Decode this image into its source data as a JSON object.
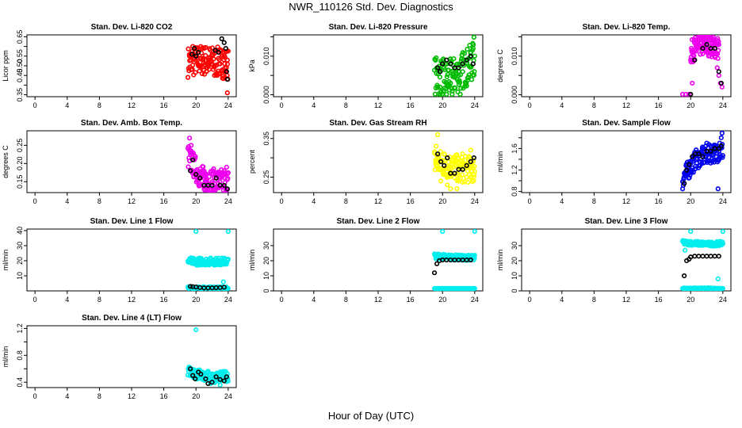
{
  "page": {
    "title": "NWR_110126  Std. Dev. Diagnostics",
    "xlabel": "Hour of Day (UTC)"
  },
  "chart_data": [
    {
      "type": "scatter",
      "title": "Stan. Dev. Li-820 CO2",
      "ylabel": "Licor ppm",
      "color": "#ff0000",
      "xlim": [
        -1,
        25
      ],
      "ylim": [
        0.34,
        0.66
      ],
      "xticks": [
        0,
        4,
        8,
        12,
        16,
        20,
        24
      ],
      "yticks": [
        0.35,
        0.4,
        0.45,
        0.5,
        0.55,
        0.6,
        0.65
      ],
      "ytick_labels": [
        "0.35",
        "",
        "0.45",
        "0.50",
        "0.55",
        "",
        "0.65"
      ],
      "band": {
        "x": [
          19,
          24
        ],
        "center": [
          0.52,
          0.53,
          0.52,
          0.51
        ],
        "spread": 0.08
      },
      "colored_points": [
        [
          19.2,
          0.55
        ],
        [
          19.4,
          0.48
        ],
        [
          19.6,
          0.6
        ],
        [
          20.0,
          0.57
        ],
        [
          20.3,
          0.5
        ],
        [
          20.6,
          0.54
        ],
        [
          21.0,
          0.59
        ],
        [
          21.3,
          0.47
        ],
        [
          21.7,
          0.52
        ],
        [
          22.0,
          0.56
        ],
        [
          22.3,
          0.45
        ],
        [
          22.6,
          0.58
        ],
        [
          23.0,
          0.51
        ],
        [
          23.3,
          0.55
        ],
        [
          23.6,
          0.49
        ],
        [
          23.9,
          0.53
        ],
        [
          23.6,
          0.44
        ],
        [
          23.9,
          0.36
        ]
      ],
      "black_points": [
        [
          19.5,
          0.56
        ],
        [
          19.8,
          0.59
        ],
        [
          20.0,
          0.55
        ],
        [
          20.3,
          0.57
        ],
        [
          22.4,
          0.58
        ],
        [
          22.8,
          0.57
        ],
        [
          23.2,
          0.64
        ],
        [
          23.5,
          0.62
        ],
        [
          23.7,
          0.59
        ],
        [
          23.8,
          0.47
        ],
        [
          23.9,
          0.43
        ]
      ]
    },
    {
      "type": "scatter",
      "title": "Stan. Dev. Li-820 Pressure",
      "ylabel": "kPa",
      "color": "#00bb00",
      "xlim": [
        -1,
        25
      ],
      "ylim": [
        -0.0005,
        0.0155
      ],
      "xticks": [
        0,
        4,
        8,
        12,
        16,
        20,
        24
      ],
      "yticks": [
        0.0,
        0.005,
        0.01,
        0.015
      ],
      "ytick_labels": [
        "0.000",
        "",
        "0.010",
        ""
      ],
      "band": {
        "x": [
          19,
          24
        ],
        "center": [
          0.005,
          0.004,
          0.006,
          0.009
        ],
        "spread": 0.005
      },
      "colored_points": [
        [
          19.3,
          0.007
        ],
        [
          19.7,
          0.002
        ],
        [
          20.1,
          0.001
        ],
        [
          20.5,
          0.0
        ],
        [
          21.0,
          0.003
        ],
        [
          21.5,
          0.007
        ],
        [
          22.0,
          0.005
        ],
        [
          22.5,
          0.006
        ],
        [
          23.0,
          0.008
        ],
        [
          23.5,
          0.011
        ],
        [
          23.8,
          0.012
        ],
        [
          23.9,
          0.015
        ],
        [
          21.2,
          0.0
        ],
        [
          22.2,
          0.0
        ]
      ],
      "black_points": [
        [
          19.4,
          0.007
        ],
        [
          19.7,
          0.006
        ],
        [
          20.0,
          0.008
        ],
        [
          20.5,
          0.009
        ],
        [
          21.0,
          0.008
        ],
        [
          21.5,
          0.007
        ],
        [
          22.0,
          0.007
        ],
        [
          22.5,
          0.008
        ],
        [
          23.0,
          0.009
        ],
        [
          23.5,
          0.01
        ],
        [
          23.8,
          0.008
        ]
      ]
    },
    {
      "type": "scatter",
      "title": "Stan. Dev. Li-820 Temp.",
      "ylabel": "degrees C",
      "color": "#ee00ee",
      "xlim": [
        -1,
        25
      ],
      "ylim": [
        -0.0005,
        0.0155
      ],
      "xticks": [
        0,
        4,
        8,
        12,
        16,
        20,
        24
      ],
      "yticks": [
        0.0,
        0.005,
        0.01,
        0.015
      ],
      "ytick_labels": [
        "0.000",
        "",
        "0.010",
        ""
      ],
      "band": {
        "x": [
          20,
          23.5
        ],
        "center": [
          0.011,
          0.013,
          0.013,
          0.012
        ],
        "spread": 0.003
      },
      "colored_points": [
        [
          19.0,
          0.0
        ],
        [
          19.4,
          0.0
        ],
        [
          19.8,
          0.0
        ],
        [
          20.2,
          0.003
        ],
        [
          20.4,
          0.009
        ],
        [
          20.6,
          0.014
        ],
        [
          21.0,
          0.015
        ],
        [
          22.0,
          0.014
        ],
        [
          23.0,
          0.011
        ],
        [
          23.3,
          0.007
        ],
        [
          23.5,
          0.005
        ],
        [
          23.7,
          0.003
        ],
        [
          23.9,
          0.002
        ]
      ],
      "black_points": [
        [
          20.0,
          0.0
        ],
        [
          20.5,
          0.009
        ],
        [
          21.5,
          0.012
        ],
        [
          22.0,
          0.013
        ],
        [
          22.5,
          0.012
        ],
        [
          23.0,
          0.012
        ],
        [
          23.5,
          0.006
        ],
        [
          23.8,
          0.003
        ]
      ]
    },
    {
      "type": "scatter",
      "title": "Stan. Dev. Amb. Box Temp.",
      "ylabel": "degrees C",
      "color": "#ee00ee",
      "xlim": [
        -1,
        25
      ],
      "ylim": [
        0.12,
        0.29
      ],
      "xticks": [
        0,
        4,
        8,
        12,
        16,
        20,
        24
      ],
      "yticks": [
        0.15,
        0.2,
        0.25
      ],
      "ytick_labels": [
        "0.15",
        "0.20",
        "0.25"
      ],
      "band": {
        "x": [
          19,
          24
        ],
        "center": [
          0.22,
          0.16,
          0.15,
          0.15
        ],
        "spread": 0.035
      },
      "colored_points": [
        [
          19.2,
          0.27
        ],
        [
          19.4,
          0.25
        ],
        [
          19.6,
          0.23
        ],
        [
          19.8,
          0.21
        ],
        [
          20.0,
          0.18
        ],
        [
          20.3,
          0.16
        ],
        [
          20.6,
          0.14
        ],
        [
          21.0,
          0.13
        ],
        [
          21.5,
          0.13
        ],
        [
          22.0,
          0.15
        ],
        [
          22.5,
          0.17
        ],
        [
          23.0,
          0.16
        ],
        [
          23.5,
          0.18
        ],
        [
          23.8,
          0.19
        ],
        [
          21.3,
          0.17
        ]
      ],
      "black_points": [
        [
          19.3,
          0.18
        ],
        [
          19.6,
          0.21
        ],
        [
          20.0,
          0.17
        ],
        [
          20.5,
          0.16
        ],
        [
          21.0,
          0.14
        ],
        [
          21.5,
          0.14
        ],
        [
          22.0,
          0.14
        ],
        [
          22.5,
          0.16
        ],
        [
          23.0,
          0.14
        ],
        [
          23.5,
          0.14
        ],
        [
          23.9,
          0.13
        ]
      ]
    },
    {
      "type": "scatter",
      "title": "Stan. Dev. Gas Stream RH",
      "ylabel": "percent",
      "color": "#ffff00",
      "xlim": [
        -1,
        25
      ],
      "ylim": [
        0.21,
        0.37
      ],
      "xticks": [
        0,
        4,
        8,
        12,
        16,
        20,
        24
      ],
      "yticks": [
        0.25,
        0.3,
        0.35
      ],
      "ytick_labels": [
        "0.25",
        "",
        "0.35"
      ],
      "band": {
        "x": [
          19,
          24
        ],
        "center": [
          0.29,
          0.28,
          0.27,
          0.27
        ],
        "spread": 0.035
      },
      "colored_points": [
        [
          19.2,
          0.33
        ],
        [
          19.4,
          0.36
        ],
        [
          19.8,
          0.24
        ],
        [
          20.2,
          0.31
        ],
        [
          20.6,
          0.23
        ],
        [
          21.0,
          0.22
        ],
        [
          21.5,
          0.29
        ],
        [
          22.0,
          0.24
        ],
        [
          22.5,
          0.31
        ],
        [
          23.0,
          0.25
        ],
        [
          23.5,
          0.32
        ],
        [
          23.9,
          0.25
        ],
        [
          21.8,
          0.22
        ]
      ],
      "black_points": [
        [
          19.4,
          0.31
        ],
        [
          19.8,
          0.29
        ],
        [
          20.2,
          0.28
        ],
        [
          20.6,
          0.3
        ],
        [
          21.0,
          0.26
        ],
        [
          21.5,
          0.26
        ],
        [
          22.0,
          0.27
        ],
        [
          22.5,
          0.27
        ],
        [
          23.0,
          0.28
        ],
        [
          23.5,
          0.29
        ],
        [
          23.9,
          0.3
        ]
      ]
    },
    {
      "type": "scatter",
      "title": "Stan. Dev. Sample Flow",
      "ylabel": "ml/min",
      "color": "#0000ee",
      "xlim": [
        -1,
        25
      ],
      "ylim": [
        0.78,
        1.93
      ],
      "xticks": [
        0,
        4,
        8,
        12,
        16,
        20,
        24
      ],
      "yticks": [
        0.8,
        1.0,
        1.2,
        1.4,
        1.6,
        1.8
      ],
      "ytick_labels": [
        "0.8",
        "",
        "1.2",
        "",
        "1.6",
        ""
      ],
      "band": {
        "x": [
          19,
          24
        ],
        "center": [
          1.05,
          1.4,
          1.5,
          1.55
        ],
        "spread": 0.18
      },
      "colored_points": [
        [
          19.0,
          0.85
        ],
        [
          19.2,
          0.95
        ],
        [
          19.4,
          1.1
        ],
        [
          19.6,
          1.25
        ],
        [
          20.0,
          1.35
        ],
        [
          20.5,
          1.45
        ],
        [
          21.0,
          1.45
        ],
        [
          21.5,
          1.6
        ],
        [
          22.0,
          1.7
        ],
        [
          22.5,
          1.65
        ],
        [
          23.0,
          1.55
        ],
        [
          23.4,
          0.85
        ],
        [
          23.6,
          1.7
        ],
        [
          23.8,
          1.8
        ],
        [
          23.9,
          1.9
        ]
      ],
      "black_points": [
        [
          19.2,
          0.95
        ],
        [
          19.5,
          1.2
        ],
        [
          19.8,
          1.3
        ],
        [
          20.2,
          1.45
        ],
        [
          20.6,
          1.5
        ],
        [
          21.0,
          1.5
        ],
        [
          21.5,
          1.45
        ],
        [
          22.0,
          1.55
        ],
        [
          22.5,
          1.55
        ],
        [
          23.0,
          1.6
        ],
        [
          23.5,
          1.6
        ],
        [
          23.8,
          1.65
        ]
      ]
    },
    {
      "type": "scatter",
      "title": "Stan. Dev. Line 1 Flow",
      "ylabel": "ml/min",
      "color": "#00eeee",
      "xlim": [
        -1,
        25
      ],
      "ylim": [
        0,
        41
      ],
      "xticks": [
        0,
        4,
        8,
        12,
        16,
        20,
        24
      ],
      "yticks": [
        10,
        20,
        30,
        40
      ],
      "ytick_labels": [
        "10",
        "20",
        "30",
        "40"
      ],
      "band": {
        "x": [
          19,
          24
        ],
        "center": [
          19.5,
          19.5,
          19.5,
          19.5
        ],
        "spread": 2.5
      },
      "extra_band": {
        "x": [
          19,
          24
        ],
        "center": [
          2.0,
          2.0,
          2.0,
          2.0
        ],
        "spread": 0.8
      },
      "colored_points": [
        [
          20.0,
          40
        ],
        [
          24.0,
          40
        ],
        [
          23.4,
          6
        ]
      ],
      "black_points": [
        [
          19.3,
          3
        ],
        [
          19.6,
          2.8
        ],
        [
          20.0,
          2.6
        ],
        [
          20.5,
          2.2
        ],
        [
          21.0,
          2.0
        ],
        [
          21.5,
          2.0
        ],
        [
          22.0,
          2.0
        ],
        [
          22.5,
          2.1
        ],
        [
          23.0,
          2.2
        ],
        [
          23.5,
          2.4
        ]
      ]
    },
    {
      "type": "scatter",
      "title": "Stan. Dev. Line 2 Flow",
      "ylabel": "ml/min",
      "color": "#00eeee",
      "xlim": [
        -1,
        25
      ],
      "ylim": [
        0,
        41
      ],
      "xticks": [
        0,
        4,
        8,
        12,
        16,
        20,
        24
      ],
      "yticks": [
        0,
        10,
        20,
        30
      ],
      "ytick_labels": [
        "0",
        "10",
        "20",
        "30"
      ],
      "band": {
        "x": [
          19,
          24
        ],
        "center": [
          23,
          22.5,
          22,
          22
        ],
        "spread": 1.8
      },
      "extra_band": {
        "x": [
          19,
          24
        ],
        "center": [
          1.0,
          1.0,
          1.0,
          1.0
        ],
        "spread": 0.4
      },
      "colored_points": [
        [
          20.0,
          40
        ],
        [
          24.0,
          40
        ]
      ],
      "black_points": [
        [
          19.0,
          12
        ],
        [
          19.3,
          18
        ],
        [
          19.6,
          20
        ],
        [
          20.0,
          20.5
        ],
        [
          20.5,
          20.5
        ],
        [
          21.0,
          20.5
        ],
        [
          21.5,
          20.5
        ],
        [
          22.0,
          20.5
        ],
        [
          22.5,
          20.5
        ],
        [
          23.0,
          20.5
        ],
        [
          23.5,
          20.5
        ]
      ]
    },
    {
      "type": "scatter",
      "title": "Stan. Dev. Line 3 Flow",
      "ylabel": "ml/min",
      "color": "#00eeee",
      "xlim": [
        -1,
        25
      ],
      "ylim": [
        0,
        41
      ],
      "xticks": [
        0,
        4,
        8,
        12,
        16,
        20,
        24
      ],
      "yticks": [
        0,
        10,
        20,
        30
      ],
      "ytick_labels": [
        "0",
        "10",
        "20",
        "30"
      ],
      "band": {
        "x": [
          19,
          24
        ],
        "center": [
          32,
          31.5,
          31,
          31.5
        ],
        "spread": 1.5
      },
      "extra_band": {
        "x": [
          19,
          24
        ],
        "center": [
          1.5,
          1.5,
          1.5,
          1.5
        ],
        "spread": 0.5
      },
      "colored_points": [
        [
          20.0,
          40
        ],
        [
          24.0,
          40
        ],
        [
          23.4,
          8
        ],
        [
          19.3,
          27
        ]
      ],
      "black_points": [
        [
          19.2,
          10
        ],
        [
          19.5,
          20
        ],
        [
          19.8,
          21
        ],
        [
          20.0,
          22.5
        ],
        [
          20.5,
          23
        ],
        [
          21.0,
          23
        ],
        [
          21.5,
          23
        ],
        [
          22.0,
          23
        ],
        [
          22.5,
          23
        ],
        [
          23.0,
          23
        ],
        [
          23.5,
          23
        ]
      ]
    },
    {
      "type": "scatter",
      "title": "Stan. Dev. Line 4 (LT) Flow",
      "ylabel": "ml/min",
      "color": "#00eeee",
      "xlim": [
        -1,
        25
      ],
      "ylim": [
        0.32,
        1.24
      ],
      "xticks": [
        0,
        4,
        8,
        12,
        16,
        20,
        24
      ],
      "yticks": [
        0.4,
        0.6,
        0.8,
        1.0,
        1.2
      ],
      "ytick_labels": [
        "0.4",
        "",
        "0.8",
        "",
        "1.2"
      ],
      "band": {
        "x": [
          19,
          24
        ],
        "center": [
          0.56,
          0.5,
          0.47,
          0.49
        ],
        "spread": 0.08
      },
      "colored_points": [
        [
          20.0,
          1.18
        ],
        [
          19.2,
          0.62
        ],
        [
          21.8,
          0.38
        ],
        [
          23.0,
          0.36
        ]
      ],
      "black_points": [
        [
          19.3,
          0.6
        ],
        [
          19.6,
          0.5
        ],
        [
          19.9,
          0.45
        ],
        [
          20.3,
          0.55
        ],
        [
          20.6,
          0.52
        ],
        [
          21.2,
          0.45
        ],
        [
          21.5,
          0.38
        ],
        [
          22.0,
          0.4
        ],
        [
          22.5,
          0.48
        ],
        [
          23.0,
          0.44
        ],
        [
          23.5,
          0.42
        ],
        [
          23.8,
          0.48
        ]
      ]
    }
  ]
}
